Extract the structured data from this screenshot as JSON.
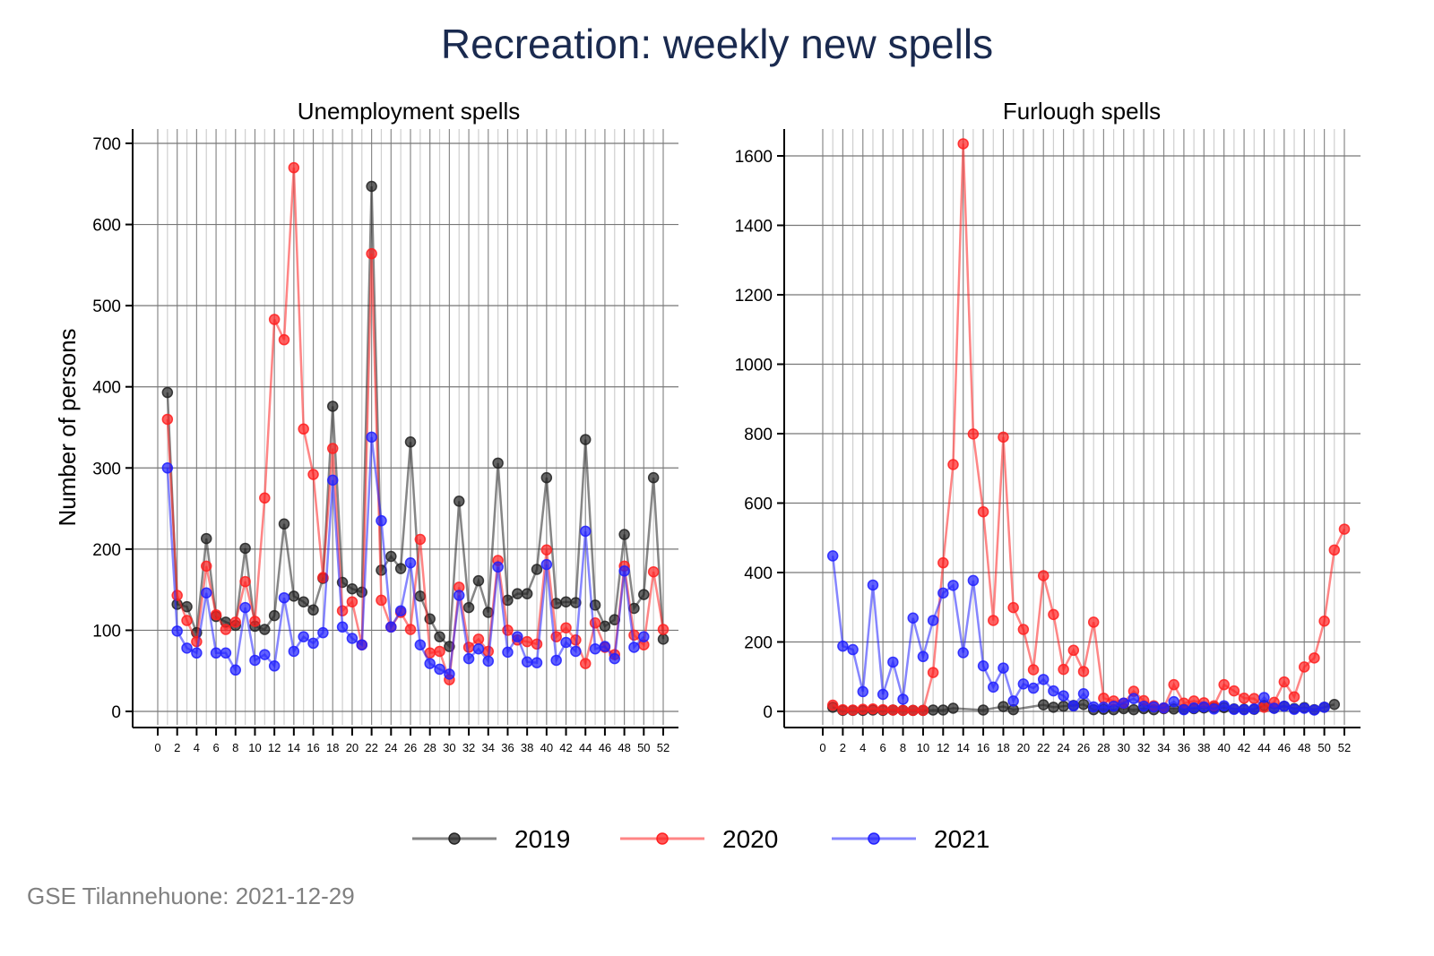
{
  "title": "Recreation: weekly new spells",
  "footer": "GSE Tilannehuone: 2021-12-29",
  "colors": {
    "2019": "#222222",
    "2020": "#ff2020",
    "2021": "#2020ff",
    "title": "#1a2a4f"
  },
  "legend": {
    "placement": "bottom-center",
    "items": [
      {
        "label": "2019",
        "color": "#222222"
      },
      {
        "label": "2020",
        "color": "#ff2020"
      },
      {
        "label": "2021",
        "color": "#2020ff"
      }
    ]
  },
  "chart_data": [
    {
      "type": "line",
      "title": "Unemployment spells",
      "ylabel": "Number of persons",
      "xlabel": "",
      "xlim": [
        0,
        52
      ],
      "ylim": [
        0,
        700
      ],
      "xticks": [
        0,
        2,
        4,
        6,
        8,
        10,
        12,
        14,
        16,
        18,
        20,
        22,
        24,
        26,
        28,
        30,
        32,
        34,
        36,
        38,
        40,
        42,
        44,
        46,
        48,
        50,
        52
      ],
      "yticks": [
        0,
        100,
        200,
        300,
        400,
        500,
        600,
        700
      ],
      "grid": true,
      "series": [
        {
          "name": "2019",
          "x": [
            1,
            2,
            3,
            4,
            5,
            6,
            7,
            8,
            9,
            10,
            11,
            12,
            13,
            14,
            15,
            16,
            17,
            18,
            19,
            20,
            21,
            22,
            23,
            24,
            25,
            26,
            27,
            28,
            29,
            30,
            31,
            32,
            33,
            34,
            35,
            36,
            37,
            38,
            39,
            40,
            41,
            42,
            43,
            44,
            45,
            46,
            47,
            48,
            49,
            50,
            51,
            52
          ],
          "values": [
            393,
            132,
            129,
            97,
            213,
            117,
            110,
            106,
            201,
            105,
            101,
            118,
            231,
            142,
            135,
            125,
            164,
            376,
            159,
            151,
            147,
            647,
            174,
            191,
            176,
            332,
            142,
            114,
            92,
            80,
            259,
            128,
            161,
            122,
            306,
            137,
            145,
            145,
            175,
            288,
            133,
            135,
            134,
            335,
            131,
            105,
            113,
            218,
            127,
            144,
            288,
            89
          ]
        },
        {
          "name": "2020",
          "x": [
            1,
            2,
            3,
            4,
            5,
            6,
            7,
            8,
            9,
            10,
            11,
            12,
            13,
            14,
            15,
            16,
            17,
            18,
            19,
            20,
            21,
            22,
            23,
            24,
            25,
            26,
            27,
            28,
            29,
            30,
            31,
            32,
            33,
            34,
            35,
            36,
            37,
            38,
            39,
            40,
            41,
            42,
            43,
            44,
            45,
            46,
            47,
            48,
            49,
            50,
            51,
            52
          ],
          "values": [
            360,
            143,
            112,
            86,
            179,
            119,
            101,
            110,
            160,
            111,
            263,
            483,
            458,
            670,
            348,
            292,
            165,
            324,
            124,
            135,
            82,
            564,
            137,
            104,
            122,
            101,
            212,
            72,
            74,
            39,
            153,
            79,
            89,
            74,
            186,
            100,
            88,
            86,
            83,
            199,
            92,
            103,
            88,
            59,
            109,
            79,
            70,
            179,
            94,
            82,
            172,
            101
          ]
        },
        {
          "name": "2021",
          "x": [
            1,
            2,
            3,
            4,
            5,
            6,
            7,
            8,
            9,
            10,
            11,
            12,
            13,
            14,
            15,
            16,
            17,
            18,
            19,
            20,
            21,
            22,
            23,
            24,
            25,
            26,
            27,
            28,
            29,
            30,
            31,
            32,
            33,
            34,
            35,
            36,
            37,
            38,
            39,
            40,
            41,
            42,
            43,
            44,
            45,
            46,
            47,
            48,
            49,
            50
          ],
          "values": [
            300,
            99,
            78,
            72,
            146,
            72,
            72,
            51,
            128,
            63,
            70,
            56,
            140,
            74,
            92,
            84,
            97,
            285,
            104,
            90,
            82,
            338,
            235,
            104,
            124,
            183,
            82,
            59,
            52,
            46,
            143,
            65,
            77,
            62,
            178,
            73,
            92,
            61,
            60,
            181,
            63,
            85,
            74,
            222,
            77,
            80,
            65,
            173,
            79,
            92
          ]
        }
      ]
    },
    {
      "type": "line",
      "title": "Furlough spells",
      "ylabel": "",
      "xlabel": "",
      "xlim": [
        0,
        52
      ],
      "ylim": [
        0,
        1600
      ],
      "xticks": [
        0,
        2,
        4,
        6,
        8,
        10,
        12,
        14,
        16,
        18,
        20,
        22,
        24,
        26,
        28,
        30,
        32,
        34,
        36,
        38,
        40,
        42,
        44,
        46,
        48,
        50,
        52
      ],
      "yticks": [
        0,
        200,
        400,
        600,
        800,
        1000,
        1200,
        1400,
        1600
      ],
      "grid": true,
      "series": [
        {
          "name": "2019",
          "x": [
            1,
            2,
            3,
            4,
            5,
            6,
            7,
            8,
            9,
            10,
            11,
            12,
            13,
            16,
            18,
            19,
            22,
            23,
            24,
            25,
            26,
            27,
            28,
            29,
            30,
            31,
            32,
            33,
            34,
            35,
            36,
            37,
            38,
            39,
            40,
            41,
            42,
            43,
            44,
            45,
            46,
            47,
            48,
            49,
            50,
            51
          ],
          "values": [
            12,
            3,
            3,
            3,
            4,
            3,
            4,
            3,
            3,
            3,
            4,
            4,
            9,
            4,
            14,
            5,
            19,
            12,
            15,
            17,
            20,
            5,
            6,
            5,
            8,
            5,
            8,
            5,
            8,
            7,
            6,
            8,
            10,
            11,
            11,
            7,
            6,
            6,
            17,
            9,
            15,
            8,
            11,
            5,
            12,
            20
          ]
        },
        {
          "name": "2020",
          "x": [
            1,
            2,
            3,
            4,
            5,
            6,
            7,
            8,
            9,
            10,
            11,
            12,
            13,
            14,
            15,
            16,
            17,
            18,
            19,
            20,
            21,
            22,
            23,
            24,
            25,
            26,
            27,
            28,
            29,
            30,
            31,
            32,
            33,
            34,
            35,
            36,
            37,
            38,
            39,
            40,
            41,
            42,
            43,
            44,
            45,
            46,
            47,
            48,
            49,
            50,
            51,
            52
          ],
          "values": [
            18,
            5,
            4,
            6,
            7,
            5,
            4,
            3,
            3,
            3,
            112,
            428,
            711,
            1635,
            799,
            575,
            262,
            790,
            299,
            236,
            120,
            391,
            279,
            121,
            176,
            115,
            257,
            38,
            30,
            24,
            58,
            31,
            16,
            10,
            77,
            24,
            30,
            25,
            16,
            77,
            59,
            38,
            37,
            12,
            26,
            85,
            42,
            128,
            154,
            260,
            465,
            525
          ]
        },
        {
          "name": "2021",
          "x": [
            1,
            2,
            3,
            4,
            5,
            6,
            7,
            8,
            9,
            10,
            11,
            12,
            13,
            14,
            15,
            16,
            17,
            18,
            19,
            20,
            21,
            22,
            23,
            24,
            25,
            26,
            27,
            28,
            29,
            30,
            31,
            32,
            33,
            34,
            35,
            36,
            37,
            38,
            39,
            40,
            41,
            42,
            43,
            44,
            45,
            46,
            47,
            48,
            49,
            50
          ],
          "values": [
            448,
            188,
            178,
            57,
            364,
            49,
            142,
            35,
            269,
            158,
            262,
            341,
            363,
            169,
            377,
            131,
            70,
            125,
            30,
            79,
            67,
            92,
            59,
            45,
            16,
            51,
            13,
            12,
            15,
            24,
            37,
            15,
            13,
            10,
            28,
            5,
            10,
            13,
            7,
            16,
            6,
            5,
            7,
            40,
            9,
            15,
            6,
            9,
            4,
            12
          ]
        }
      ]
    }
  ]
}
